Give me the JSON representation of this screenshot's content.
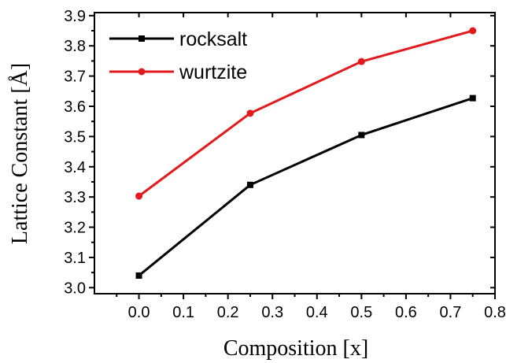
{
  "chart_data": {
    "type": "line",
    "xlabel": "Composition [x]",
    "ylabel": "Lattice Constant [Å]",
    "xlim": [
      -0.1,
      0.8
    ],
    "ylim": [
      2.98,
      3.91
    ],
    "xticks": [
      0.0,
      0.1,
      0.2,
      0.3,
      0.4,
      0.5,
      0.6,
      0.7,
      0.8
    ],
    "xtick_labels": [
      "0.0",
      "0.1",
      "0.2",
      "0.3",
      "0.4",
      "0.5",
      "0.6",
      "0.7",
      "0.8"
    ],
    "yticks": [
      3.0,
      3.1,
      3.2,
      3.3,
      3.4,
      3.5,
      3.6,
      3.7,
      3.8,
      3.9
    ],
    "ytick_labels": [
      "3.0",
      "3.1",
      "3.2",
      "3.3",
      "3.4",
      "3.5",
      "3.6",
      "3.7",
      "3.8",
      "3.9"
    ],
    "legend_position": "top-left",
    "grid": false,
    "series": [
      {
        "name": "rocksalt",
        "color": "#000000",
        "marker": "square",
        "x": [
          0.0,
          0.25,
          0.5,
          0.75
        ],
        "y": [
          3.04,
          3.34,
          3.505,
          3.627
        ]
      },
      {
        "name": "wurtzite",
        "color": "#e31a1c",
        "marker": "circle",
        "x": [
          0.0,
          0.25,
          0.5,
          0.75
        ],
        "y": [
          3.303,
          3.577,
          3.748,
          3.85
        ]
      }
    ]
  }
}
